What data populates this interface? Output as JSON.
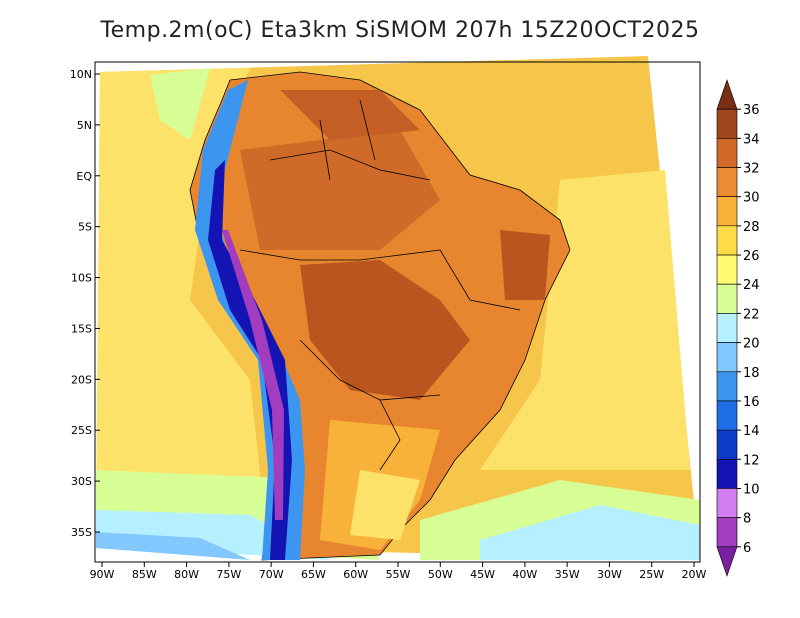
{
  "title": "Temp.2m(oC) Eta3km SiSMOM 207h 15Z20OCT2025",
  "map": {
    "lat_labels": [
      "10N",
      "5N",
      "EQ",
      "5S",
      "10S",
      "15S",
      "20S",
      "25S",
      "30S",
      "35S"
    ],
    "lat_values": [
      10,
      5,
      0,
      -5,
      -10,
      -15,
      -20,
      -25,
      -30,
      -35
    ],
    "lon_labels": [
      "90W",
      "85W",
      "80W",
      "75W",
      "70W",
      "65W",
      "60W",
      "55W",
      "50W",
      "45W",
      "40W",
      "35W",
      "30W",
      "25W",
      "20W"
    ],
    "lon_values": [
      -90,
      -85,
      -80,
      -75,
      -70,
      -65,
      -60,
      -55,
      -50,
      -45,
      -40,
      -35,
      -30,
      -25,
      -20
    ],
    "lon_range": [
      -90,
      -20
    ],
    "lat_range": [
      -38,
      12
    ]
  },
  "colorbar": {
    "units": "oC",
    "labels": [
      "6",
      "8",
      "10",
      "12",
      "14",
      "16",
      "18",
      "20",
      "22",
      "24",
      "26",
      "28",
      "30",
      "32",
      "34",
      "36"
    ],
    "colors": [
      "#7a1fa0",
      "#a13dbe",
      "#d27ef0",
      "#1414b4",
      "#0a3cc8",
      "#1e6ee6",
      "#3c96f0",
      "#82c8ff",
      "#b4f0ff",
      "#d7ff96",
      "#fffa6e",
      "#ffdc46",
      "#f8b23a",
      "#ec8c32",
      "#d2682a",
      "#a0461e",
      "#7a2e14"
    ]
  }
}
